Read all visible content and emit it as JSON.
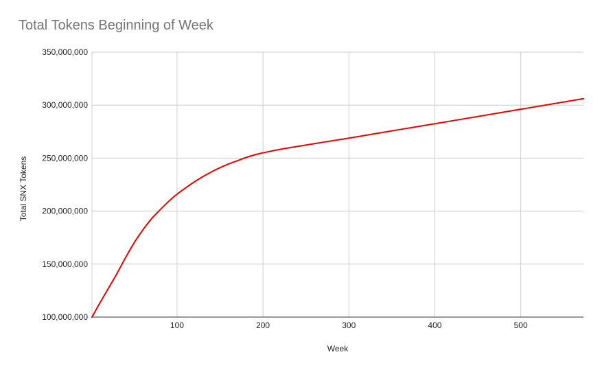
{
  "chart_data": {
    "type": "line",
    "title": "Total Tokens Beginning of Week",
    "xlabel": "Week",
    "ylabel": "Total SNX Tokens",
    "xlim": [
      1,
      573
    ],
    "ylim": [
      100000000,
      350000000
    ],
    "x_ticks": [
      100,
      200,
      300,
      400,
      500
    ],
    "x_tick_labels": [
      "100",
      "200",
      "300",
      "400",
      "500"
    ],
    "y_ticks": [
      100000000,
      150000000,
      200000000,
      250000000,
      300000000,
      350000000
    ],
    "y_tick_labels": [
      "100,000,000",
      "150,000,000",
      "200,000,000",
      "250,000,000",
      "300,000,000",
      "350,000,000"
    ],
    "grid": true,
    "legend": "none",
    "series": [
      {
        "color": "#ee0000",
        "x": [
          1,
          10,
          20,
          30,
          40,
          50,
          60,
          70,
          80,
          90,
          100,
          110,
          120,
          130,
          140,
          150,
          160,
          170,
          180,
          190,
          200,
          220,
          240,
          260,
          280,
          300,
          330,
          360,
          390,
          420,
          450,
          480,
          510,
          540,
          573
        ],
        "y": [
          100000000,
          113000000,
          127000000,
          141000000,
          156000000,
          170000000,
          182000000,
          192500000,
          201000000,
          209000000,
          216000000,
          222000000,
          227500000,
          232500000,
          237000000,
          241000000,
          244500000,
          247500000,
          250500000,
          253000000,
          255000000,
          258300000,
          261000000,
          263700000,
          266300000,
          268900000,
          273000000,
          277100000,
          281100000,
          285200000,
          289300000,
          293400000,
          297500000,
          301600000,
          306100000
        ]
      }
    ]
  }
}
